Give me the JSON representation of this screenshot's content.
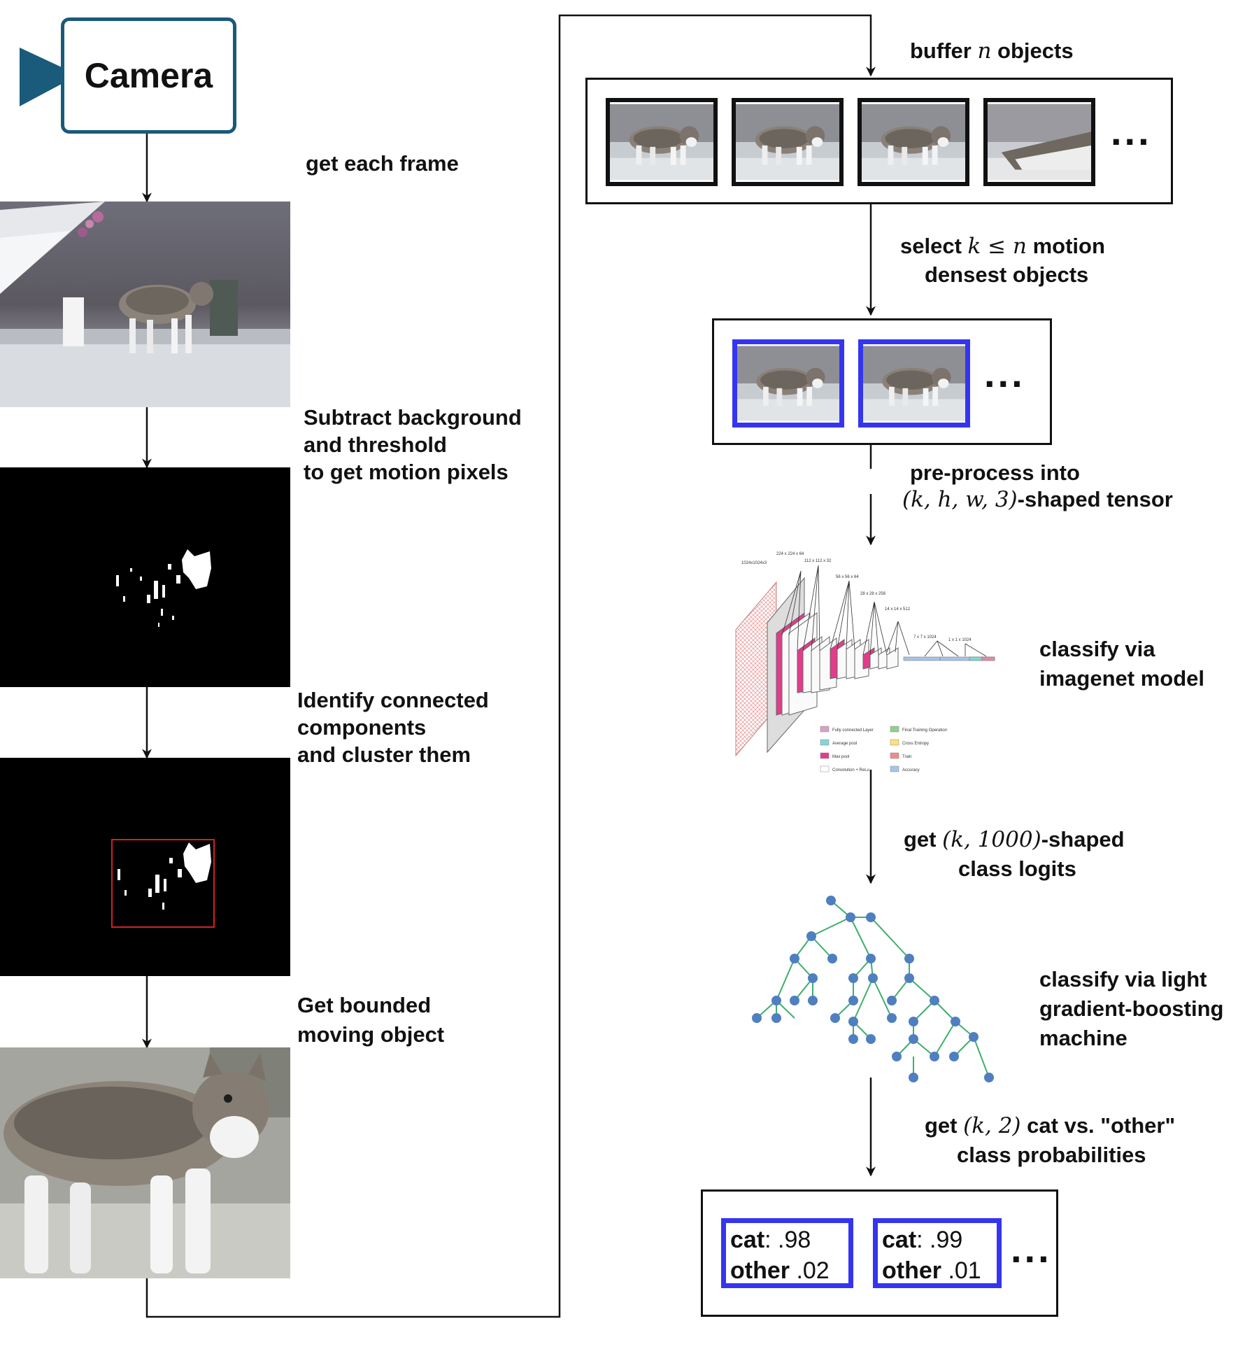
{
  "camera": {
    "label": "Camera"
  },
  "left_steps": {
    "get_frame": "get each frame",
    "subtract_line1": "Subtract background",
    "subtract_line2": "and threshold",
    "subtract_line3": "to get motion pixels",
    "identify_line1": "Identify connected",
    "identify_line2": "components",
    "identify_line3": "and cluster them",
    "bounded_line1": "Get bounded",
    "bounded_line2": "moving object"
  },
  "right_steps": {
    "buffer_prefix": "buffer",
    "buffer_var": "n",
    "buffer_suffix": "objects",
    "select_prefix": "select",
    "select_math": "k ≤ n",
    "select_suffix": "motion",
    "select_line2": "densest objects",
    "preprocess_line1": "pre-process into",
    "preprocess_math": "(k, h, w, 3)",
    "preprocess_suffix": "-shaped tensor",
    "classify_imagenet_line1": "classify via",
    "classify_imagenet_line2": "imagenet model",
    "logits_prefix": "get",
    "logits_math": "(k, 1000)",
    "logits_suffix": "-shaped",
    "logits_line2": "class logits",
    "gbm_line1": "classify via light",
    "gbm_line2": "gradient-boosting",
    "gbm_line3": "machine",
    "probs_prefix": "get",
    "probs_math": "(k, 2)",
    "probs_suffix": "cat vs. \"other\"",
    "probs_line2": "class probabilities"
  },
  "ellipsis": "...",
  "results": [
    {
      "cat_label": "cat",
      "cat_value": ": .98",
      "other_label": "other",
      "other_value": " .02"
    },
    {
      "cat_label": "cat",
      "cat_value": ": .99",
      "other_label": "other",
      "other_value": " .01"
    }
  ],
  "cnn_legend": {
    "items": [
      "Fully connected Layer",
      "Average pool",
      "Max pool",
      "Convolution + ReLu",
      "Final Training Operation",
      "Cross Entropy",
      "Train",
      "Accuracy"
    ],
    "layer_labels": [
      "1024x1024x3",
      "224 x 224 x 64",
      "112 x 112 x 32",
      "56 x 56 x 64",
      "28 x 28 x 256",
      "14 x 14 x 512",
      "7 x 7 x 1024",
      "1 x 1 x 1024"
    ]
  },
  "colors": {
    "camera_border": "#1a5a7a",
    "selected_border": "#3535f0",
    "tree_node": "#4f7fbf",
    "tree_edge": "#3fae6e",
    "bbox": "#d42020",
    "cnn_pink": "#e23c8a"
  },
  "icons": [
    "camera-icon"
  ]
}
